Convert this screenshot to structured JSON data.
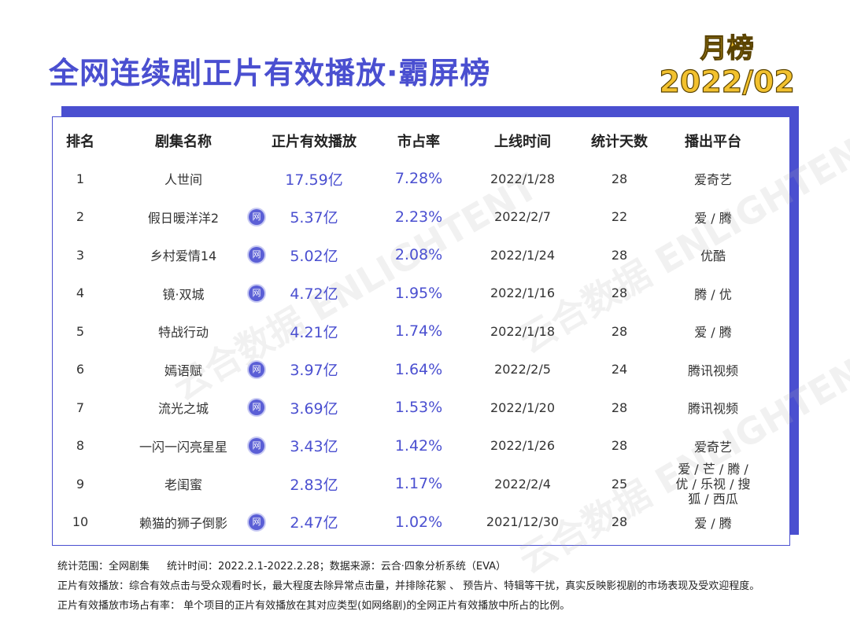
{
  "title": "全网连续剧正片有效播放·霸屏榜",
  "badge": {
    "label": "月榜",
    "date": "2022/02"
  },
  "watermark": "云合数据 ENLIGHTENT",
  "columns": [
    "排名",
    "剧集名称",
    "正片有效播放",
    "市占率",
    "上线时间",
    "统计天数",
    "播出平台"
  ],
  "net_badge": "网",
  "rows": [
    {
      "rank": "1",
      "name": "人世间",
      "net": false,
      "play": "17.59亿",
      "share": "7.28%",
      "date": "2022/1/28",
      "days": "28",
      "platform": "爱奇艺"
    },
    {
      "rank": "2",
      "name": "假日暖洋洋2",
      "net": true,
      "play": "5.37亿",
      "share": "2.23%",
      "date": "2022/2/7",
      "days": "22",
      "platform": "爱 / 腾"
    },
    {
      "rank": "3",
      "name": "乡村爱情14",
      "net": true,
      "play": "5.02亿",
      "share": "2.08%",
      "date": "2022/1/24",
      "days": "28",
      "platform": "优酷"
    },
    {
      "rank": "4",
      "name": "镜·双城",
      "net": true,
      "play": "4.72亿",
      "share": "1.95%",
      "date": "2022/1/16",
      "days": "28",
      "platform": "腾 / 优"
    },
    {
      "rank": "5",
      "name": "特战行动",
      "net": false,
      "play": "4.21亿",
      "share": "1.74%",
      "date": "2022/1/18",
      "days": "28",
      "platform": "爱 / 腾"
    },
    {
      "rank": "6",
      "name": "嫣语赋",
      "net": true,
      "play": "3.97亿",
      "share": "1.64%",
      "date": "2022/2/5",
      "days": "24",
      "platform": "腾讯视频"
    },
    {
      "rank": "7",
      "name": "流光之城",
      "net": true,
      "play": "3.69亿",
      "share": "1.53%",
      "date": "2022/1/20",
      "days": "28",
      "platform": "腾讯视频"
    },
    {
      "rank": "8",
      "name": "一闪一闪亮星星",
      "net": true,
      "play": "3.43亿",
      "share": "1.42%",
      "date": "2022/1/26",
      "days": "28",
      "platform": "爱奇艺"
    },
    {
      "rank": "9",
      "name": "老闺蜜",
      "net": false,
      "play": "2.83亿",
      "share": "1.17%",
      "date": "2022/2/4",
      "days": "25",
      "platform": "爱 / 芒 / 腾 / 优 / 乐视 / 搜狐 / 西瓜"
    },
    {
      "rank": "10",
      "name": "赖猫的狮子倒影",
      "net": true,
      "play": "2.47亿",
      "share": "1.02%",
      "date": "2021/12/30",
      "days": "28",
      "platform": "爱 / 腾"
    }
  ],
  "notes": {
    "scope": "统计范围：全网剧集",
    "period": "统计时间：2022.2.1-2022.2.28；数据来源：云合·四象分析系统（EVA）",
    "def1": "正片有效播放：综合有效点击与受众观看时长，最大程度去除异常点击量，并排除花絮 、 预告片、特辑等干扰，真实反映影视剧的市场表现及受欢迎程度。",
    "def2": "正片有效播放市场占有率： 单个项目的正片有效播放在其对应类型(如网络剧)的全网正片有效播放中所占的比例。"
  }
}
